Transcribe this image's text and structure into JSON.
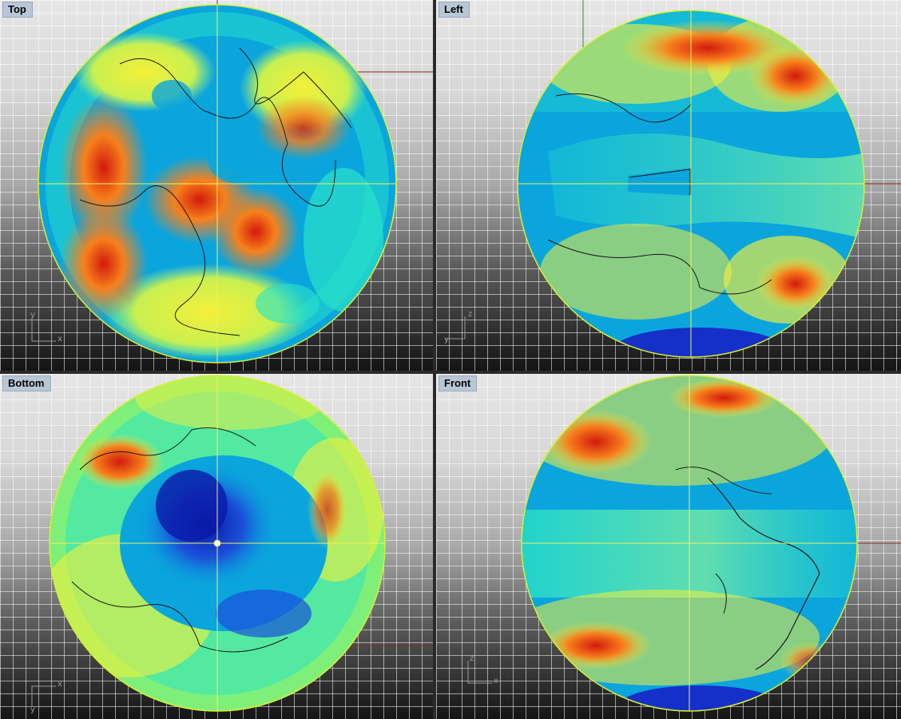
{
  "viewports": {
    "top": {
      "title": "Top",
      "axis_h": "x",
      "axis_v": "y"
    },
    "left": {
      "title": "Left",
      "axis_h": "y",
      "axis_v": "z"
    },
    "bottom": {
      "title": "Bottom",
      "axis_h": "x",
      "axis_v": "y"
    },
    "front": {
      "title": "Front",
      "axis_h": "x",
      "axis_v": "z"
    }
  },
  "colors": {
    "ocean": "#0aa5dd",
    "cyan": "#28e2c8",
    "yellow": "#f4f03a",
    "orange": "#f7801b",
    "red": "#d21a0c",
    "deep_blue": "#1530c8",
    "crosshair": "#f0f060",
    "globe_outline": "#d8f030"
  }
}
